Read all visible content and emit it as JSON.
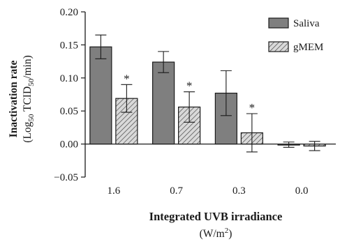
{
  "chart_data": {
    "type": "bar",
    "categories": [
      "1.6",
      "0.7",
      "0.3",
      "0.0"
    ],
    "series": [
      {
        "name": "Saliva",
        "values": [
          0.147,
          0.124,
          0.077,
          -0.001
        ],
        "errors": [
          0.018,
          0.016,
          0.034,
          0.004
        ],
        "fill": "#7f7f7f",
        "pattern": "solid"
      },
      {
        "name": "gMEM",
        "values": [
          0.069,
          0.056,
          0.017,
          -0.003
        ],
        "errors": [
          0.021,
          0.023,
          0.029,
          0.007
        ],
        "fill": "#d0d0d0",
        "pattern": "hatch"
      }
    ],
    "significance": [
      {
        "series": "gMEM",
        "category": "1.6",
        "mark": "*"
      },
      {
        "series": "gMEM",
        "category": "0.7",
        "mark": "*"
      },
      {
        "series": "gMEM",
        "category": "0.3",
        "mark": "*"
      }
    ],
    "ylabel": {
      "line1": "Inactivation rate",
      "line2_prefix": "(Log",
      "line2_sub1": "50",
      "line2_mid": " TCID",
      "line2_sub2": "50",
      "line2_suffix": "/min)"
    },
    "xlabel": {
      "line1": "Integrated UVB irradiance",
      "line2_prefix": "(W/m",
      "line2_sup": "2",
      "line2_suffix": ")"
    },
    "ylim": [
      -0.05,
      0.2
    ],
    "yticks": [
      "0.20",
      "0.15",
      "0.10",
      "0.05",
      "0.00",
      "−0.05"
    ],
    "yticks_values": [
      0.2,
      0.15,
      0.1,
      0.05,
      0.0,
      -0.05
    ],
    "legend": {
      "position": "top-right"
    },
    "grid": false,
    "zero_line": true
  }
}
